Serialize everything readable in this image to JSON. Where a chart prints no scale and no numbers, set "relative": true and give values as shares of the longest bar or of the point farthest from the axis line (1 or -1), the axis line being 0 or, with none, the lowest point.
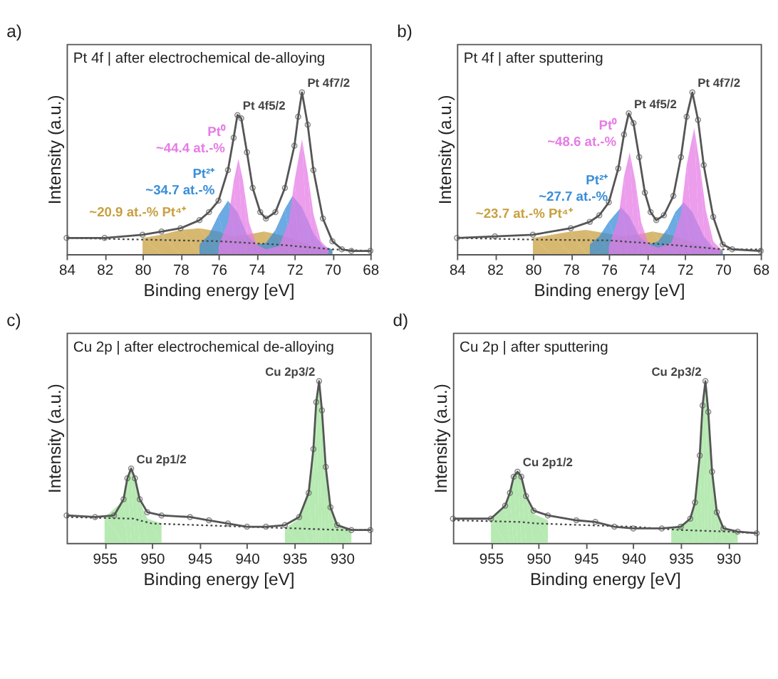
{
  "chart_data": [
    {
      "type": "line",
      "relative": true,
      "title": "a)",
      "subtitle": "Pt 4f | after electrochemical de-alloying",
      "xlabel": "Binding energy [eV]",
      "ylabel": "Intensity (a.u.)",
      "xlim": [
        84,
        68
      ],
      "xticks": [
        84,
        82,
        80,
        78,
        76,
        74,
        72,
        70,
        68
      ],
      "annotations": [
        {
          "text": "Pt 4f5/2",
          "x": 75.0,
          "y": 0.86
        },
        {
          "text": "Pt 4f7/2",
          "x": 71.6,
          "y": 1.0
        }
      ],
      "series": [
        {
          "type": "area",
          "name": "~20.9 at.-% Pt⁴⁺",
          "color": "#c9a040",
          "x": [
            80,
            79,
            78,
            77,
            76,
            75.3,
            74.5,
            73.6,
            72.8,
            72,
            71,
            70
          ],
          "values": [
            0.1,
            0.12,
            0.15,
            0.16,
            0.14,
            0.11,
            0.12,
            0.14,
            0.12,
            0.09,
            0.05,
            0.03
          ]
        },
        {
          "type": "area",
          "name": "Pt²⁺\n~34.7 at.-%",
          "color": "#3a8ed8",
          "x": [
            77,
            76.5,
            76,
            75.5,
            75,
            74.5,
            74,
            73.5,
            73,
            72.5,
            72.1,
            71.6,
            71,
            70.5,
            70
          ],
          "values": [
            0.06,
            0.12,
            0.24,
            0.33,
            0.26,
            0.12,
            0.06,
            0.07,
            0.15,
            0.28,
            0.36,
            0.29,
            0.13,
            0.05,
            0.03
          ]
        },
        {
          "type": "area",
          "name": "Pt⁰\n~44.4 at.-%",
          "color": "#e67ce6",
          "x": [
            76,
            75.5,
            75.2,
            74.95,
            74.7,
            74.4,
            74,
            73.5,
            72.8,
            72.3,
            72,
            71.6,
            71.3,
            71,
            70.6,
            70.2
          ],
          "values": [
            0.05,
            0.2,
            0.45,
            0.59,
            0.45,
            0.2,
            0.06,
            0.03,
            0.05,
            0.2,
            0.45,
            0.71,
            0.5,
            0.25,
            0.08,
            0.03
          ]
        },
        {
          "type": "line",
          "line_style": "dotted",
          "color": "#444444",
          "x": [
            84,
            80,
            76,
            73,
            71,
            70,
            68
          ],
          "values": [
            0.1,
            0.09,
            0.08,
            0.06,
            0.04,
            0.03,
            0.02
          ]
        },
        {
          "marker": "circle",
          "color": "#555555",
          "x": [
            84,
            82,
            80,
            79,
            78,
            77,
            76.5,
            76,
            75.5,
            75.2,
            75,
            74.8,
            74.5,
            74.2,
            73.8,
            73.5,
            73,
            72.5,
            72,
            71.8,
            71.6,
            71.3,
            71,
            70.5,
            70,
            69.5,
            69,
            68
          ],
          "values": [
            0.1,
            0.1,
            0.12,
            0.14,
            0.16,
            0.21,
            0.26,
            0.33,
            0.52,
            0.72,
            0.86,
            0.84,
            0.63,
            0.41,
            0.26,
            0.22,
            0.26,
            0.41,
            0.67,
            0.85,
            1.0,
            0.8,
            0.52,
            0.22,
            0.08,
            0.03,
            0.02,
            0.02
          ]
        }
      ]
    },
    {
      "type": "line",
      "relative": true,
      "title": "b)",
      "subtitle": "Pt 4f | after sputtering",
      "xlabel": "Binding energy [eV]",
      "ylabel": "Intensity (a.u.)",
      "xlim": [
        84,
        68
      ],
      "xticks": [
        84,
        82,
        80,
        78,
        76,
        74,
        72,
        70,
        68
      ],
      "annotations": [
        {
          "text": "Pt 4f5/2",
          "x": 74.95,
          "y": 0.87
        },
        {
          "text": "Pt 4f7/2",
          "x": 71.6,
          "y": 1.0
        }
      ],
      "series": [
        {
          "type": "area",
          "name": "~23.7 at.-% Pt⁴⁺",
          "color": "#c9a040",
          "x": [
            80,
            79,
            78,
            77.2,
            76.2,
            75.3,
            74.5,
            73.7,
            72.8,
            72,
            71,
            70
          ],
          "values": [
            0.1,
            0.12,
            0.14,
            0.15,
            0.13,
            0.11,
            0.12,
            0.14,
            0.12,
            0.09,
            0.05,
            0.03
          ]
        },
        {
          "type": "area",
          "name": "Pt²⁺\n~27.7 at.-%",
          "color": "#3a8ed8",
          "x": [
            77,
            76.5,
            76,
            75.35,
            74.9,
            74.4,
            73.9,
            73.4,
            72.9,
            72.5,
            72.05,
            71.6,
            71,
            70.5,
            70
          ],
          "values": [
            0.06,
            0.11,
            0.2,
            0.29,
            0.23,
            0.11,
            0.06,
            0.08,
            0.16,
            0.26,
            0.32,
            0.26,
            0.11,
            0.04,
            0.02
          ]
        },
        {
          "type": "area",
          "name": "Pt⁰\n~48.6 at.-%",
          "color": "#e67ce6",
          "x": [
            76,
            75.5,
            75.2,
            74.9,
            74.6,
            74.3,
            73.9,
            73.4,
            72.7,
            72.2,
            71.9,
            71.5,
            71.2,
            70.9,
            70.5,
            70.1
          ],
          "values": [
            0.05,
            0.22,
            0.48,
            0.63,
            0.45,
            0.2,
            0.06,
            0.04,
            0.07,
            0.25,
            0.55,
            0.78,
            0.55,
            0.28,
            0.08,
            0.03
          ]
        },
        {
          "type": "line",
          "line_style": "dotted",
          "color": "#444444",
          "x": [
            84,
            80,
            76,
            73,
            71,
            70,
            68
          ],
          "values": [
            0.1,
            0.09,
            0.085,
            0.06,
            0.04,
            0.03,
            0.03
          ]
        },
        {
          "marker": "circle",
          "color": "#555555",
          "x": [
            84,
            82,
            80,
            78,
            77,
            76.5,
            76,
            75.5,
            75.2,
            74.95,
            74.7,
            74.4,
            74.1,
            73.8,
            73.5,
            73.1,
            72.6,
            72.2,
            71.9,
            71.6,
            71.3,
            71,
            70.5,
            70,
            69.5,
            68
          ],
          "values": [
            0.1,
            0.11,
            0.12,
            0.16,
            0.2,
            0.24,
            0.32,
            0.53,
            0.74,
            0.87,
            0.81,
            0.6,
            0.38,
            0.26,
            0.21,
            0.24,
            0.36,
            0.6,
            0.85,
            1.0,
            0.83,
            0.55,
            0.23,
            0.06,
            0.03,
            0.02
          ]
        }
      ]
    },
    {
      "type": "line",
      "relative": true,
      "title": "c)",
      "subtitle": "Cu 2p | after electrochemical de-alloying",
      "xlabel": "Binding energy [eV]",
      "ylabel": "Intensity (a.u.)",
      "xlim": [
        959,
        927
      ],
      "xticks": [
        955,
        950,
        945,
        940,
        935,
        930
      ],
      "annotations": [
        {
          "text": "Cu 2p1/2",
          "x": 952.2,
          "y": 0.46
        },
        {
          "text": "Cu 2p3/2",
          "x": 932.4,
          "y": 1.0
        }
      ],
      "series": [
        {
          "type": "area",
          "color": "#9fe39a",
          "x": [
            955,
            953,
            952.6,
            952.2,
            951.8,
            951.3,
            950.5,
            949
          ],
          "values": [
            0.16,
            0.26,
            0.39,
            0.45,
            0.39,
            0.26,
            0.15,
            0.12
          ]
        },
        {
          "type": "area",
          "color": "#9fe39a",
          "x": [
            936,
            934.5,
            933.5,
            933,
            932.7,
            932.4,
            932.1,
            931.7,
            931.2,
            930.5,
            929
          ],
          "values": [
            0.09,
            0.15,
            0.3,
            0.57,
            0.86,
            0.99,
            0.81,
            0.46,
            0.21,
            0.1,
            0.08
          ]
        },
        {
          "type": "line",
          "line_style": "dotted",
          "color": "#444444",
          "x": [
            959,
            952,
            950,
            945,
            940,
            935,
            930,
            927
          ],
          "values": [
            0.16,
            0.15,
            0.12,
            0.11,
            0.1,
            0.09,
            0.08,
            0.08
          ]
        },
        {
          "marker": "circle",
          "color": "#555555",
          "x": [
            959,
            956,
            954,
            953,
            952.6,
            952.2,
            951.8,
            951.3,
            950.5,
            949,
            946,
            944,
            942,
            940,
            938,
            936,
            934.5,
            933.5,
            933,
            932.7,
            932.4,
            932.1,
            931.7,
            931.2,
            930.5,
            929,
            927
          ],
          "values": [
            0.17,
            0.16,
            0.17,
            0.27,
            0.4,
            0.46,
            0.4,
            0.27,
            0.19,
            0.17,
            0.16,
            0.14,
            0.12,
            0.1,
            0.1,
            0.11,
            0.16,
            0.31,
            0.58,
            0.87,
            1.0,
            0.82,
            0.47,
            0.22,
            0.11,
            0.08,
            0.08
          ]
        }
      ]
    },
    {
      "type": "line",
      "relative": true,
      "title": "d)",
      "subtitle": "Cu 2p | after sputtering",
      "xlabel": "Binding energy [eV]",
      "ylabel": "Intensity (a.u.)",
      "xlim": [
        959,
        927
      ],
      "xticks": [
        955,
        950,
        945,
        940,
        935,
        930
      ],
      "annotations": [
        {
          "text": "Cu 2p1/2",
          "x": 952.2,
          "y": 0.44
        },
        {
          "text": "Cu 2p3/2",
          "x": 932.4,
          "y": 1.0
        }
      ],
      "series": [
        {
          "type": "area",
          "color": "#9fe39a",
          "x": [
            955,
            953.5,
            953,
            952.6,
            952.2,
            951.8,
            951.3,
            950.5,
            949
          ],
          "values": [
            0.15,
            0.22,
            0.3,
            0.4,
            0.43,
            0.4,
            0.28,
            0.18,
            0.14
          ]
        },
        {
          "type": "area",
          "color": "#9fe39a",
          "x": [
            936,
            934,
            933.5,
            933,
            932.7,
            932.4,
            932.1,
            931.7,
            931.2,
            930.5,
            929
          ],
          "values": [
            0.09,
            0.14,
            0.24,
            0.53,
            0.84,
            0.99,
            0.8,
            0.43,
            0.18,
            0.08,
            0.07
          ]
        },
        {
          "type": "line",
          "line_style": "dotted",
          "color": "#444444",
          "x": [
            959,
            952,
            950,
            945,
            940,
            935,
            930,
            927
          ],
          "values": [
            0.14,
            0.13,
            0.12,
            0.11,
            0.1,
            0.08,
            0.07,
            0.06
          ]
        },
        {
          "marker": "circle",
          "color": "#555555",
          "x": [
            959,
            955,
            953.5,
            953,
            952.6,
            952.2,
            951.8,
            951.3,
            950.5,
            949,
            946,
            944,
            942,
            940,
            937,
            935,
            934,
            933.5,
            933,
            932.7,
            932.4,
            932.1,
            931.7,
            931.2,
            930.5,
            929,
            927
          ],
          "values": [
            0.15,
            0.15,
            0.23,
            0.31,
            0.41,
            0.44,
            0.41,
            0.29,
            0.2,
            0.17,
            0.14,
            0.13,
            0.1,
            0.09,
            0.09,
            0.1,
            0.15,
            0.25,
            0.54,
            0.85,
            1.0,
            0.81,
            0.44,
            0.19,
            0.09,
            0.07,
            0.06
          ]
        }
      ]
    }
  ]
}
